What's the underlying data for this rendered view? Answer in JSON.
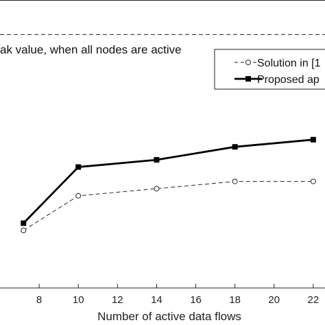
{
  "chart_data": {
    "type": "line",
    "xlabel": "Number of active data flows",
    "x_ticks": [
      "8",
      "10",
      "12",
      "14",
      "16",
      "18",
      "20",
      "22"
    ],
    "xlim": [
      6.0,
      22.6
    ],
    "ylim": [
      0,
      1
    ],
    "grid": false,
    "legend_placement": "top-right",
    "annotation": "ak value, when all nodes are active",
    "reference_line": {
      "y": 0.88,
      "style": "dashed"
    },
    "series": [
      {
        "name": "Solution in [1",
        "style": "thin-dashed-circle-markers",
        "color": "#222222",
        "x": [
          7.2,
          10,
          14,
          18,
          22
        ],
        "y": [
          0.2,
          0.32,
          0.345,
          0.37,
          0.37
        ]
      },
      {
        "name": "Proposed ap",
        "style": "thick-solid-square-markers",
        "color": "#000000",
        "x": [
          7.2,
          10,
          14,
          18,
          22
        ],
        "y": [
          0.225,
          0.42,
          0.445,
          0.49,
          0.515
        ]
      }
    ]
  }
}
